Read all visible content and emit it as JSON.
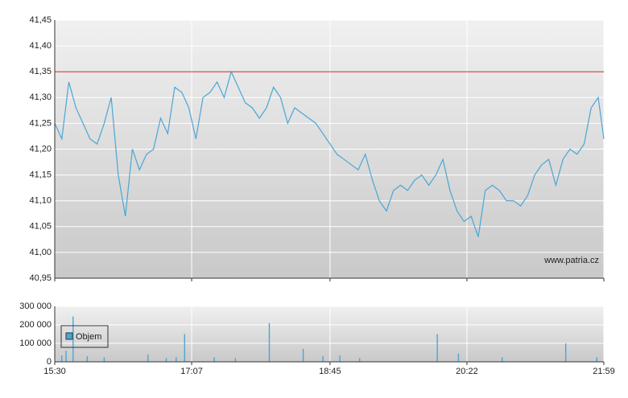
{
  "chart_data": [
    {
      "type": "line",
      "color": "#4aa6d6",
      "x": [
        "15:30",
        "15:35",
        "15:40",
        "15:45",
        "15:50",
        "15:55",
        "16:00",
        "16:05",
        "16:10",
        "16:15",
        "16:20",
        "16:25",
        "16:30",
        "16:35",
        "16:40",
        "16:45",
        "16:50",
        "16:55",
        "17:00",
        "17:05",
        "17:10",
        "17:15",
        "17:20",
        "17:25",
        "17:30",
        "17:35",
        "17:40",
        "17:45",
        "17:50",
        "17:55",
        "18:00",
        "18:05",
        "18:10",
        "18:15",
        "18:20",
        "18:25",
        "18:30",
        "18:35",
        "18:40",
        "18:45",
        "18:50",
        "18:55",
        "19:00",
        "19:05",
        "19:10",
        "19:15",
        "19:20",
        "19:25",
        "19:30",
        "19:35",
        "19:40",
        "19:45",
        "19:50",
        "19:55",
        "20:00",
        "20:05",
        "20:10",
        "20:15",
        "20:20",
        "20:25",
        "20:30",
        "20:35",
        "20:40",
        "20:45",
        "20:50",
        "20:55",
        "21:00",
        "21:05",
        "21:10",
        "21:15",
        "21:20",
        "21:25",
        "21:30",
        "21:35",
        "21:40",
        "21:45",
        "21:50",
        "21:55",
        "21:59"
      ],
      "values": [
        41.25,
        41.22,
        41.33,
        41.28,
        41.25,
        41.22,
        41.21,
        41.25,
        41.3,
        41.15,
        41.07,
        41.2,
        41.16,
        41.19,
        41.2,
        41.26,
        41.23,
        41.32,
        41.31,
        41.28,
        41.22,
        41.3,
        41.31,
        41.33,
        41.3,
        41.35,
        41.32,
        41.29,
        41.28,
        41.26,
        41.28,
        41.32,
        41.3,
        41.25,
        41.28,
        41.27,
        41.26,
        41.25,
        41.23,
        41.21,
        41.19,
        41.18,
        41.17,
        41.16,
        41.19,
        41.14,
        41.1,
        41.08,
        41.12,
        41.13,
        41.12,
        41.14,
        41.15,
        41.13,
        41.15,
        41.18,
        41.12,
        41.08,
        41.06,
        41.07,
        41.03,
        41.12,
        41.13,
        41.12,
        41.1,
        41.1,
        41.09,
        41.11,
        41.15,
        41.17,
        41.18,
        41.13,
        41.18,
        41.2,
        41.19,
        41.21,
        41.28,
        41.3,
        41.22
      ],
      "xlim": [
        "15:30",
        "21:59"
      ],
      "ylim": [
        40.95,
        41.45
      ],
      "yticks": [
        {
          "value": 40.95,
          "label": "40,95"
        },
        {
          "value": 41.0,
          "label": "41,00"
        },
        {
          "value": 41.05,
          "label": "41,05"
        },
        {
          "value": 41.1,
          "label": "41,10"
        },
        {
          "value": 41.15,
          "label": "41,15"
        },
        {
          "value": 41.2,
          "label": "41,20"
        },
        {
          "value": 41.25,
          "label": "41,25"
        },
        {
          "value": 41.3,
          "label": "41,30"
        },
        {
          "value": 41.35,
          "label": "41,35"
        },
        {
          "value": 41.4,
          "label": "41,40"
        },
        {
          "value": 41.45,
          "label": "41,45"
        }
      ],
      "reference_line": 41.35,
      "reference_color": "#cc2222",
      "watermark": "www.patria.cz",
      "grid": true
    },
    {
      "type": "bar",
      "x": [
        "15:35",
        "15:38",
        "15:43",
        "15:53",
        "16:05",
        "16:36",
        "16:49",
        "16:56",
        "17:02",
        "17:23",
        "17:38",
        "18:02",
        "18:26",
        "18:40",
        "18:52",
        "19:06",
        "20:01",
        "20:16",
        "20:47",
        "21:32",
        "21:54"
      ],
      "series": [
        {
          "name": "Objem",
          "color": "#4aa6d6",
          "values": [
            35000,
            60000,
            245000,
            30000,
            25000,
            40000,
            20000,
            25000,
            150000,
            25000,
            20000,
            210000,
            70000,
            30000,
            35000,
            20000,
            150000,
            45000,
            25000,
            100000,
            25000
          ]
        }
      ],
      "xlim": [
        "15:30",
        "21:59"
      ],
      "xticks": [
        "15:30",
        "17:07",
        "18:45",
        "20:22",
        "21:59"
      ],
      "ylim": [
        0,
        300000
      ],
      "yticks": [
        {
          "value": 0,
          "label": "0"
        },
        {
          "value": 100000,
          "label": "100 000"
        },
        {
          "value": 200000,
          "label": "200 000"
        },
        {
          "value": 300000,
          "label": "300 000"
        }
      ],
      "grid": true
    }
  ]
}
